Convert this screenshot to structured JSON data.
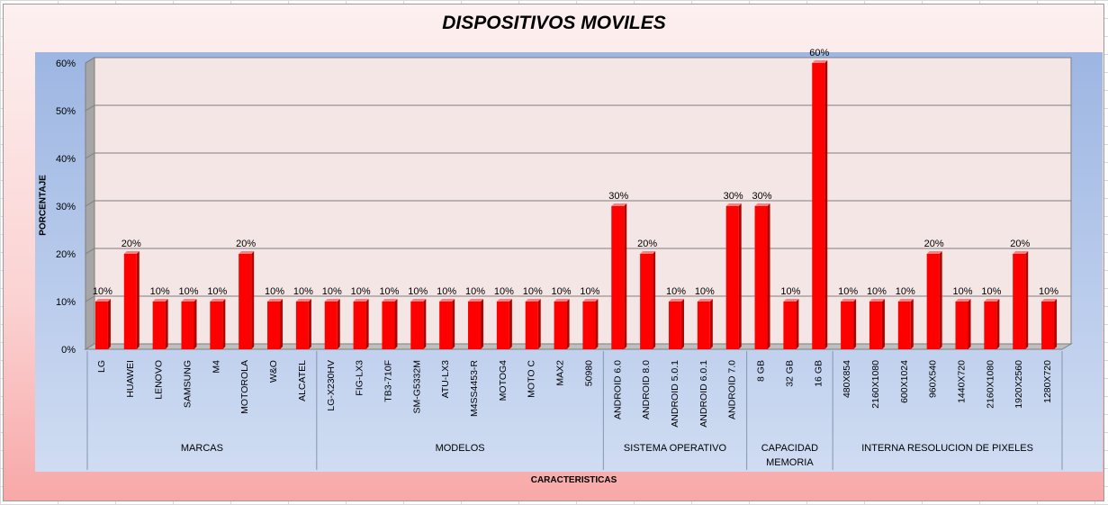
{
  "chart_data": {
    "type": "bar",
    "title": "DISPOSITIVOS MOVILES",
    "xlabel": "CARACTERISTICAS",
    "ylabel": "PORCENTAJE",
    "ylim": [
      0,
      60
    ],
    "yticks": [
      "0%",
      "10%",
      "20%",
      "30%",
      "40%",
      "50%",
      "60%"
    ],
    "grid": true,
    "legend": "none",
    "bar_color": "#ff0000",
    "groups": [
      {
        "label": "MARCAS",
        "size": 8
      },
      {
        "label": "MODELOS",
        "size": 10
      },
      {
        "label": "SISTEMA OPERATIVO",
        "size": 5
      },
      {
        "label": "CAPACIDAD MEMORIA",
        "lines": [
          "CAPACIDAD",
          "MEMORIA"
        ],
        "size": 3
      },
      {
        "label": "INTERNA RESOLUCION DE PIXELES",
        "size": 8
      }
    ],
    "categories": [
      "LG",
      "HUAWEI",
      "LENOVO",
      "SAMSUNG",
      "M4",
      "MOTOROLA",
      "W&O",
      "ALCATEL",
      "LG-X230HV",
      "FIG-LX3",
      "TB3-710F",
      "SM-G5332M",
      "ATU-LX3",
      "M4SS4453-R",
      "MOTOG4",
      "MOTO C",
      "MAX2",
      "50980",
      "ANDROID 6.0",
      "ANDROID 8.0",
      "ANDROID 5.0.1",
      "ANDROID 6.0.1",
      "ANDROID 7.0",
      "8 GB",
      "32 GB",
      "16 GB",
      "480X854",
      "2160X1080",
      "600X1024",
      "960X540",
      "1440X720",
      "2160X1080",
      "1920X2560",
      "1280X720"
    ],
    "values": [
      10,
      20,
      10,
      10,
      10,
      20,
      10,
      10,
      10,
      10,
      10,
      10,
      10,
      10,
      10,
      10,
      10,
      10,
      30,
      20,
      10,
      10,
      30,
      30,
      10,
      60,
      10,
      10,
      10,
      20,
      10,
      10,
      20,
      10
    ],
    "data_labels": [
      "10%",
      "20%",
      "10%",
      "10%",
      "10%",
      "20%",
      "10%",
      "10%",
      "10%",
      "10%",
      "10%",
      "10%",
      "10%",
      "10%",
      "10%",
      "10%",
      "10%",
      "10%",
      "30%",
      "20%",
      "10%",
      "10%",
      "30%",
      "30%",
      "10%",
      "60%",
      "10%",
      "10%",
      "10%",
      "20%",
      "10%",
      "10%",
      "20%",
      "10%"
    ]
  }
}
